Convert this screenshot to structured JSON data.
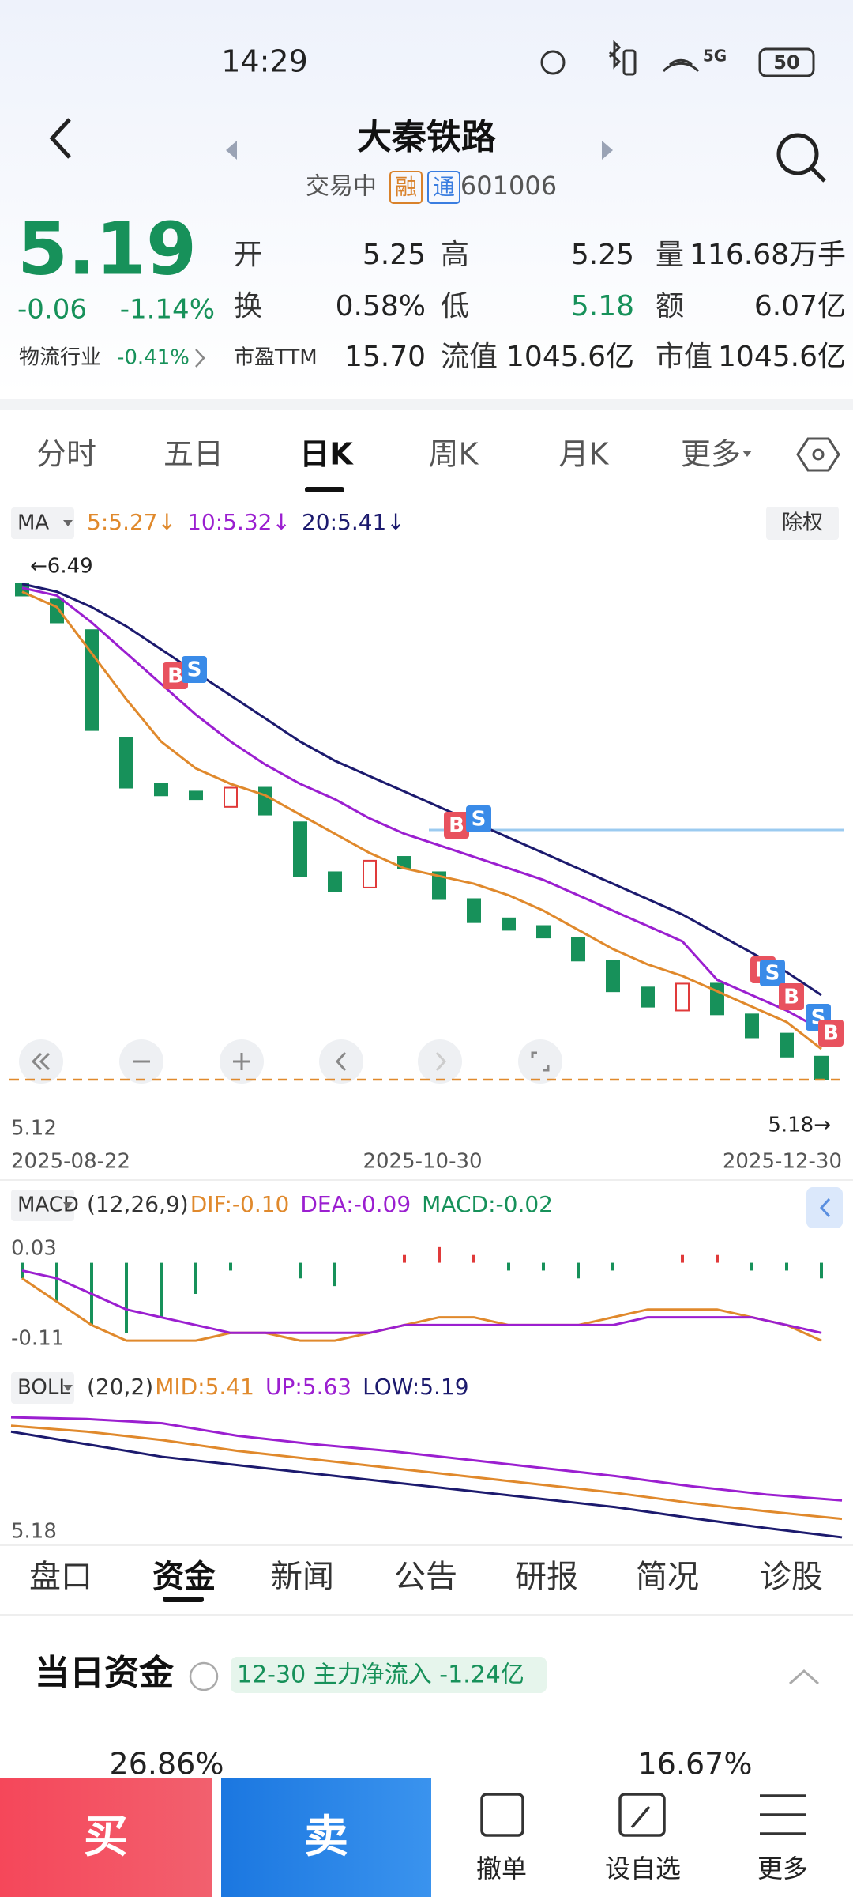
{
  "status": {
    "time": "14:29",
    "network": "5G",
    "battery": "50"
  },
  "header": {
    "title": "大秦铁路",
    "state": "交易中",
    "tags": [
      "融",
      "通"
    ],
    "code": "601006"
  },
  "quote": {
    "price": "5.19",
    "change": "-0.06",
    "change_pct": "-1.14%",
    "industry": "物流行业",
    "industry_change": "-0.41%",
    "fields": [
      {
        "label": "开",
        "value": "5.25"
      },
      {
        "label": "换",
        "value": "0.58%"
      },
      {
        "label": "市盈TTM",
        "value": "15.70"
      },
      {
        "label": "高",
        "value": "5.25"
      },
      {
        "label": "低",
        "value": "5.18"
      },
      {
        "label": "流值",
        "value": "1045.6亿"
      },
      {
        "label": "量",
        "value": "116.68万手"
      },
      {
        "label": "额",
        "value": "6.07亿"
      },
      {
        "label": "市值",
        "value": "1045.6亿"
      }
    ]
  },
  "period_tabs": [
    "分时",
    "五日",
    "日K",
    "周K",
    "月K",
    "更多"
  ],
  "chart_data": [
    {
      "type": "candlestick",
      "indicator": "MA",
      "right_button": "除权",
      "x_labels": [
        "2025-08-22",
        "2025-10-30",
        "2025-12-30"
      ],
      "open": [
        6.48,
        6.44,
        6.36,
        6.08,
        5.96,
        5.94,
        5.9,
        5.95,
        5.86,
        5.73,
        5.69,
        5.77,
        5.73,
        5.66,
        5.61,
        5.59,
        5.56,
        5.5,
        5.43,
        5.37,
        5.44,
        5.36,
        5.31,
        5.25
      ],
      "close": [
        6.45,
        6.38,
        6.1,
        5.95,
        5.93,
        5.92,
        5.95,
        5.88,
        5.72,
        5.68,
        5.76,
        5.74,
        5.66,
        5.6,
        5.58,
        5.56,
        5.5,
        5.42,
        5.38,
        5.44,
        5.36,
        5.3,
        5.25,
        5.19
      ],
      "series": [
        {
          "name": "5:5.27↓",
          "color": "#e0892c",
          "values": [
            6.46,
            6.42,
            6.3,
            6.18,
            6.07,
            6.0,
            5.96,
            5.93,
            5.88,
            5.83,
            5.78,
            5.74,
            5.72,
            5.7,
            5.67,
            5.63,
            5.58,
            5.53,
            5.49,
            5.46,
            5.42,
            5.38,
            5.34,
            5.27
          ]
        },
        {
          "name": "10:5.32↓",
          "color": "#9b1fd0",
          "values": [
            6.47,
            6.45,
            6.38,
            6.3,
            6.22,
            6.14,
            6.07,
            6.01,
            5.96,
            5.92,
            5.87,
            5.83,
            5.8,
            5.77,
            5.74,
            5.71,
            5.67,
            5.63,
            5.59,
            5.55,
            5.45,
            5.41,
            5.37,
            5.32
          ]
        },
        {
          "name": "20:5.41↓",
          "color": "#1c1a6e",
          "values": [
            6.48,
            6.46,
            6.42,
            6.37,
            6.31,
            6.25,
            6.19,
            6.13,
            6.07,
            6.02,
            5.98,
            5.94,
            5.9,
            5.86,
            5.82,
            5.78,
            5.74,
            5.7,
            5.66,
            5.62,
            5.57,
            5.52,
            5.47,
            5.41
          ]
        }
      ],
      "ylim": [
        5.12,
        6.56
      ],
      "yticks": [
        5.12
      ],
      "max_label": "←6.49",
      "last_label": "5.18→",
      "signals": [
        "B",
        "S",
        "B",
        "S",
        "B",
        "S",
        "B",
        "S",
        "B"
      ],
      "up_color": "#e03a3a",
      "down_color": "#17915a"
    },
    {
      "type": "macd",
      "indicator": "MACD",
      "params": "(12,26,9)",
      "series": [
        {
          "name": "DIF:-0.10",
          "color": "#e0892c",
          "values": [
            -0.02,
            -0.05,
            -0.08,
            -0.1,
            -0.1,
            -0.1,
            -0.09,
            -0.09,
            -0.1,
            -0.1,
            -0.09,
            -0.08,
            -0.07,
            -0.07,
            -0.08,
            -0.08,
            -0.08,
            -0.07,
            -0.06,
            -0.06,
            -0.06,
            -0.07,
            -0.08,
            -0.1
          ]
        },
        {
          "name": "DEA:-0.09",
          "color": "#9b1fd0",
          "values": [
            -0.01,
            -0.02,
            -0.04,
            -0.06,
            -0.07,
            -0.08,
            -0.09,
            -0.09,
            -0.09,
            -0.09,
            -0.09,
            -0.08,
            -0.08,
            -0.08,
            -0.08,
            -0.08,
            -0.08,
            -0.08,
            -0.07,
            -0.07,
            -0.07,
            -0.07,
            -0.08,
            -0.09
          ]
        },
        {
          "name": "MACD:-0.02",
          "color": "#17915a",
          "values": [
            -0.02,
            -0.05,
            -0.08,
            -0.09,
            -0.07,
            -0.04,
            -0.01,
            0.0,
            -0.02,
            -0.03,
            0.0,
            0.01,
            0.02,
            0.01,
            -0.01,
            -0.01,
            -0.02,
            -0.01,
            0.0,
            0.01,
            0.01,
            -0.01,
            -0.01,
            -0.02
          ]
        }
      ],
      "ylim": [
        -0.11,
        0.03
      ],
      "yticks": [
        0.03,
        -0.11
      ],
      "up_color": "#e03a3a",
      "down_color": "#17915a"
    },
    {
      "type": "boll",
      "indicator": "BOLL",
      "params": "(20,2)",
      "series": [
        {
          "name": "MID:5.41",
          "color": "#e0892c",
          "values": [
            6.52,
            6.45,
            6.35,
            6.22,
            6.12,
            6.02,
            5.92,
            5.82,
            5.72,
            5.6,
            5.5,
            5.41
          ]
        },
        {
          "name": "UP:5.63",
          "color": "#9b1fd0",
          "values": [
            6.62,
            6.6,
            6.55,
            6.4,
            6.3,
            6.22,
            6.12,
            6.02,
            5.92,
            5.8,
            5.7,
            5.63
          ]
        },
        {
          "name": "LOW:5.19",
          "color": "#1c1a6e",
          "values": [
            6.45,
            6.3,
            6.15,
            6.05,
            5.95,
            5.85,
            5.75,
            5.65,
            5.55,
            5.42,
            5.3,
            5.19
          ]
        }
      ],
      "ylim": [
        5.18,
        6.65
      ],
      "yticks": [
        5.18
      ]
    }
  ],
  "info_tabs": [
    "盘口",
    "资金",
    "新闻",
    "公告",
    "研报",
    "简况",
    "诊股"
  ],
  "capital": {
    "title": "当日资金",
    "badge": "12-30 主力净流入 -1.24亿",
    "values": [
      "26.86%",
      "16.67%"
    ]
  },
  "actions": {
    "buy": "买",
    "sell": "卖",
    "tools": [
      "撤单",
      "设自选",
      "更多"
    ]
  }
}
